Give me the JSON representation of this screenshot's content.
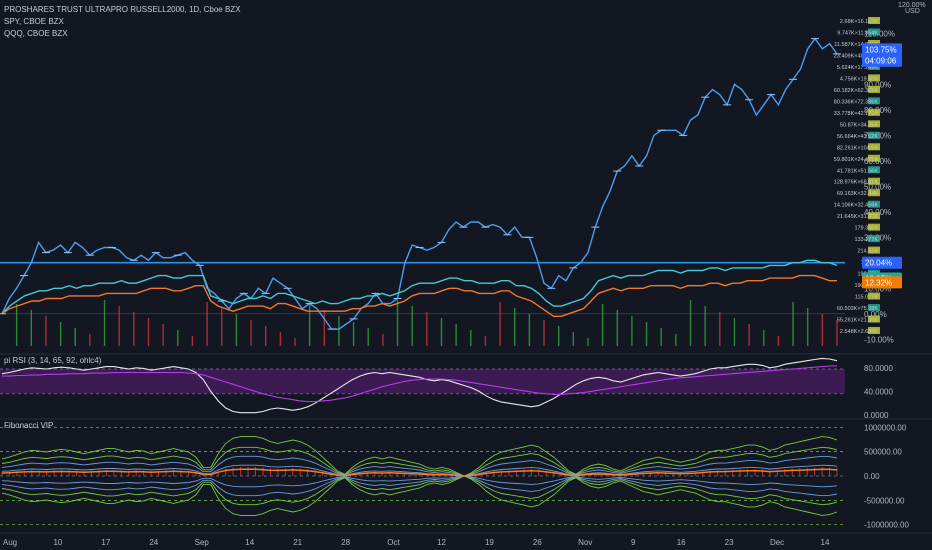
{
  "legends": {
    "main": "PROSHARES TRUST ULTRAPRO RUSSELL2000, 1D, Cboe BZX",
    "spy": "SPY, CBOE BZX",
    "qqq": "QQQ, CBOE BZX",
    "rsi": "pi RSI (3, 14, 65, 92, ohlc4)",
    "fib": "Fibonacci VIP"
  },
  "colors": {
    "background": "#131722",
    "main_line": "#4a9ff0",
    "spy_line": "#46c8d2",
    "qqq_line": "#f2762d",
    "rsi_line": "#e8e8ee",
    "rsi_band": "#5c1f7a",
    "up_volume": "#2e9f3a",
    "down_volume": "#c8313d",
    "fib_green": "#7ac943",
    "fib_red": "#e5332a",
    "fib_blue": "#6e9bd8"
  },
  "chart_data": [
    {
      "type": "line",
      "name": "price-pane",
      "y_axis_unit": "USD",
      "y_axis_top_label": "120.00%",
      "ylim": [
        -15,
        120
      ],
      "yticks": [
        "110.00%",
        "100.00%",
        "90.00%",
        "80.00%",
        "70.00%",
        "60.00%",
        "50.00%",
        "40.00%",
        "30.00%",
        "20.00%",
        "10.00%",
        "0.00%",
        "-10.00%"
      ],
      "yticks_values": [
        110,
        100,
        90,
        80,
        70,
        60,
        50,
        40,
        30,
        20,
        10,
        0,
        -10
      ],
      "x_ticks": [
        "Aug",
        "10",
        "17",
        "24",
        "Sep",
        "14",
        "21",
        "28",
        "Oct",
        "12",
        "19",
        "26",
        "Nov",
        "9",
        "16",
        "23",
        "Dec",
        "14"
      ],
      "series": [
        {
          "name": "PROSHARES TRUST ULTRAPRO RUSSELL2000",
          "values": [
            0,
            6,
            10,
            15,
            20,
            28,
            24,
            25,
            27,
            24,
            28,
            26,
            23,
            25,
            26,
            26,
            25,
            22,
            21,
            23,
            21,
            24,
            22,
            22,
            23,
            24,
            21,
            19,
            10,
            8,
            5,
            2,
            6,
            8,
            6,
            10,
            8,
            14,
            12,
            10,
            6,
            2,
            4,
            2,
            -2,
            -6,
            -6,
            -4,
            -2,
            2,
            4,
            8,
            4,
            4,
            6,
            20,
            27,
            26,
            25,
            26,
            28,
            33,
            36,
            34,
            36,
            36,
            34,
            35,
            34,
            31,
            34,
            30,
            30,
            22,
            12,
            10,
            15,
            13,
            18,
            20,
            24,
            34,
            42,
            48,
            56,
            58,
            62,
            58,
            62,
            70,
            72,
            72,
            72,
            70,
            76,
            78,
            85,
            88,
            86,
            82,
            90,
            88,
            84,
            78,
            82,
            86,
            82,
            88,
            92,
            96,
            104,
            108,
            104,
            106,
            102
          ]
        },
        {
          "name": "SPY",
          "values": [
            0,
            3,
            5,
            7,
            8,
            9,
            9,
            10,
            10,
            11,
            10,
            11,
            11,
            12,
            12,
            12,
            13,
            12,
            12,
            13,
            14,
            15,
            15,
            14,
            14,
            15,
            15,
            15,
            7,
            6,
            5,
            4,
            5,
            6,
            6,
            7,
            6,
            8,
            8,
            7,
            6,
            5,
            4,
            5,
            4,
            4,
            5,
            6,
            6,
            7,
            7,
            8,
            7,
            8,
            9,
            11,
            12,
            12,
            12,
            13,
            14,
            14,
            13,
            13,
            12,
            12,
            12,
            13,
            13,
            11,
            11,
            10,
            8,
            5,
            3,
            3,
            4,
            5,
            6,
            9,
            13,
            14,
            15,
            14,
            15,
            15,
            15,
            16,
            17,
            17,
            17,
            16,
            17,
            17,
            17,
            18,
            18,
            17,
            18,
            18,
            18,
            18,
            18,
            19,
            19,
            19,
            20,
            20,
            21,
            21,
            20,
            20,
            19
          ]
        },
        {
          "name": "QQQ",
          "values": [
            0,
            2,
            3,
            4,
            5,
            5,
            6,
            6,
            6,
            7,
            7,
            7,
            7,
            7,
            8,
            8,
            8,
            8,
            8,
            9,
            10,
            10,
            10,
            9,
            9,
            10,
            11,
            11,
            5,
            3,
            2,
            1,
            2,
            3,
            3,
            3,
            2,
            4,
            4,
            3,
            2,
            1,
            1,
            1,
            1,
            1,
            1,
            2,
            2,
            3,
            3,
            4,
            3,
            4,
            5,
            7,
            8,
            8,
            8,
            9,
            10,
            10,
            9,
            9,
            8,
            8,
            8,
            9,
            9,
            7,
            6,
            5,
            3,
            1,
            -1,
            -1,
            0,
            1,
            2,
            5,
            8,
            9,
            10,
            9,
            10,
            10,
            10,
            11,
            11,
            11,
            11,
            10,
            11,
            11,
            11,
            12,
            12,
            11,
            12,
            12,
            13,
            13,
            13,
            14,
            14,
            14,
            14,
            15,
            15,
            15,
            14,
            13,
            13
          ]
        }
      ],
      "price_labels": [
        {
          "text": "103.75%",
          "value": 103.75,
          "color": "#2962ff"
        },
        {
          "text": "04:09:06",
          "value": 99.3,
          "color": "#2962ff"
        },
        {
          "text": "20.04%",
          "value": 20.04,
          "color": "#2962ff"
        },
        {
          "text": "13.85%",
          "value": 13.85,
          "color": "#26a69a"
        },
        {
          "text": "12.32%",
          "value": 12.32,
          "color": "#f57c00"
        }
      ],
      "horizontal_line": 20.04,
      "volume_profile_labels": [
        "2.68K×16.103K",
        "9.747K×11.854K",
        "11.587K×14.809K",
        "23.409K×48.193K",
        "5.624K×17.249K",
        "4.756K×19.50K",
        "60.182K×62.365K",
        "80.336K×72.395K",
        "33.778K×42.172K",
        "50.87K×34.35K",
        "56.664K×43.92K",
        "82.261K×104.5K",
        "59.801K×24.472K",
        "41.781K×51.56K",
        "128.976K×68.81K",
        "69.163K×32.44K",
        "14.106K×32.458K",
        "21.645K×31.60K",
        "179.366K",
        "133.177K",
        "214.52K",
        "145.8K",
        "192.56K",
        "190.799K",
        "115.077K",
        "60.503K×75.38K",
        "55.261K×21.05K",
        "2.548K×2.634K"
      ]
    },
    {
      "type": "line",
      "name": "pi-rsi",
      "yticks": [
        "80.0000",
        "40.0000",
        "0.0000"
      ],
      "yticks_values": [
        80,
        40,
        0
      ],
      "ylim": [
        -5,
        100
      ],
      "band": [
        36,
        78
      ],
      "series": [
        {
          "name": "rsi",
          "values": [
            70,
            72,
            75,
            78,
            80,
            79,
            78,
            80,
            81,
            80,
            78,
            76,
            78,
            80,
            82,
            82,
            80,
            78,
            80,
            79,
            76,
            78,
            80,
            82,
            80,
            78,
            72,
            60,
            40,
            24,
            12,
            6,
            4,
            4,
            4,
            6,
            10,
            12,
            10,
            8,
            10,
            14,
            20,
            28,
            36,
            44,
            52,
            60,
            66,
            70,
            72,
            70,
            72,
            70,
            68,
            66,
            64,
            60,
            58,
            60,
            58,
            54,
            50,
            46,
            40,
            32,
            26,
            22,
            20,
            18,
            16,
            14,
            16,
            22,
            28,
            36,
            44,
            52,
            58,
            62,
            64,
            62,
            58,
            56,
            60,
            64,
            68,
            70,
            72,
            70,
            68,
            66,
            68,
            70,
            74,
            78,
            80,
            80,
            82,
            84,
            86,
            86,
            84,
            80,
            82,
            86,
            88,
            90,
            92,
            94,
            96,
            95,
            92
          ]
        },
        {
          "name": "signal",
          "values": [
            66,
            66,
            67,
            67,
            68,
            68,
            69,
            69,
            69,
            70,
            70,
            70,
            71,
            71,
            71,
            72,
            72,
            72,
            72,
            72,
            72,
            72,
            72,
            72,
            72,
            71,
            70,
            68,
            64,
            60,
            56,
            52,
            48,
            44,
            40,
            36,
            33,
            30,
            28,
            26,
            24,
            23,
            23,
            24,
            25,
            27,
            29,
            32,
            36,
            40,
            44,
            48,
            51,
            54,
            57,
            59,
            60,
            61,
            61,
            61,
            60,
            59,
            57,
            55,
            53,
            51,
            49,
            47,
            45,
            43,
            41,
            39,
            37,
            36,
            35,
            35,
            36,
            37,
            38,
            40,
            42,
            44,
            46,
            48,
            50,
            52,
            54,
            56,
            58,
            60,
            62,
            63,
            64,
            65,
            66,
            67,
            68,
            69,
            70,
            71,
            72,
            73,
            74,
            75,
            76,
            77,
            78,
            79,
            80,
            81,
            82,
            83,
            83
          ]
        }
      ]
    },
    {
      "type": "line",
      "name": "fibonacci-vip",
      "yticks": [
        "1000000.00",
        "500000.00",
        "0.00",
        "-500000.00",
        "-1000000.00"
      ],
      "yticks_values": [
        1000000,
        500000,
        0,
        -500000,
        -1000000
      ],
      "ylim": [
        -1150000,
        1150000
      ]
    }
  ]
}
